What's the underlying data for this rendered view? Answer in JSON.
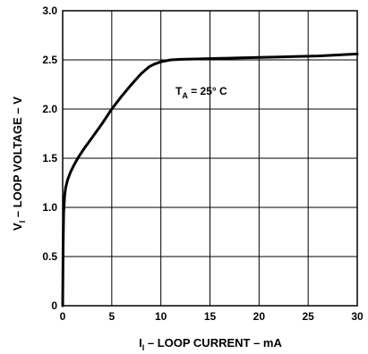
{
  "chart_data": {
    "type": "line",
    "title": "",
    "xlabel": {
      "main": "I",
      "sub": "I",
      "rest": " – LOOP CURRENT – mA"
    },
    "ylabel": {
      "main": "V",
      "sub": "I",
      "rest": " – LOOP VOLTAGE – V"
    },
    "xlim": [
      0,
      30
    ],
    "ylim": [
      0,
      3.0
    ],
    "x_ticks": [
      "0",
      "5",
      "10",
      "15",
      "20",
      "25",
      "30"
    ],
    "y_ticks": [
      "0",
      "0.5",
      "1.0",
      "1.5",
      "2.0",
      "2.5",
      "3.0"
    ],
    "grid": true,
    "annotation": {
      "main": "T",
      "sub": "A",
      "rest": " = 25° C"
    },
    "series": [
      {
        "x": [
          0,
          0.05,
          0.1,
          0.2,
          0.3,
          0.5,
          0.8,
          1.2,
          1.6,
          2.2,
          3.0,
          4.0,
          5.0,
          6.0,
          7.0,
          8.0,
          8.8,
          9.4,
          10.0,
          11.0,
          12.0,
          14.0,
          16.0,
          18.0,
          20.0,
          22.0,
          24.0,
          26.0,
          28.0,
          30.0
        ],
        "y": [
          0,
          0.6,
          0.95,
          1.12,
          1.2,
          1.28,
          1.36,
          1.44,
          1.51,
          1.6,
          1.71,
          1.85,
          2.0,
          2.13,
          2.25,
          2.36,
          2.43,
          2.46,
          2.48,
          2.5,
          2.505,
          2.51,
          2.515,
          2.52,
          2.525,
          2.53,
          2.535,
          2.54,
          2.55,
          2.56
        ]
      }
    ]
  }
}
